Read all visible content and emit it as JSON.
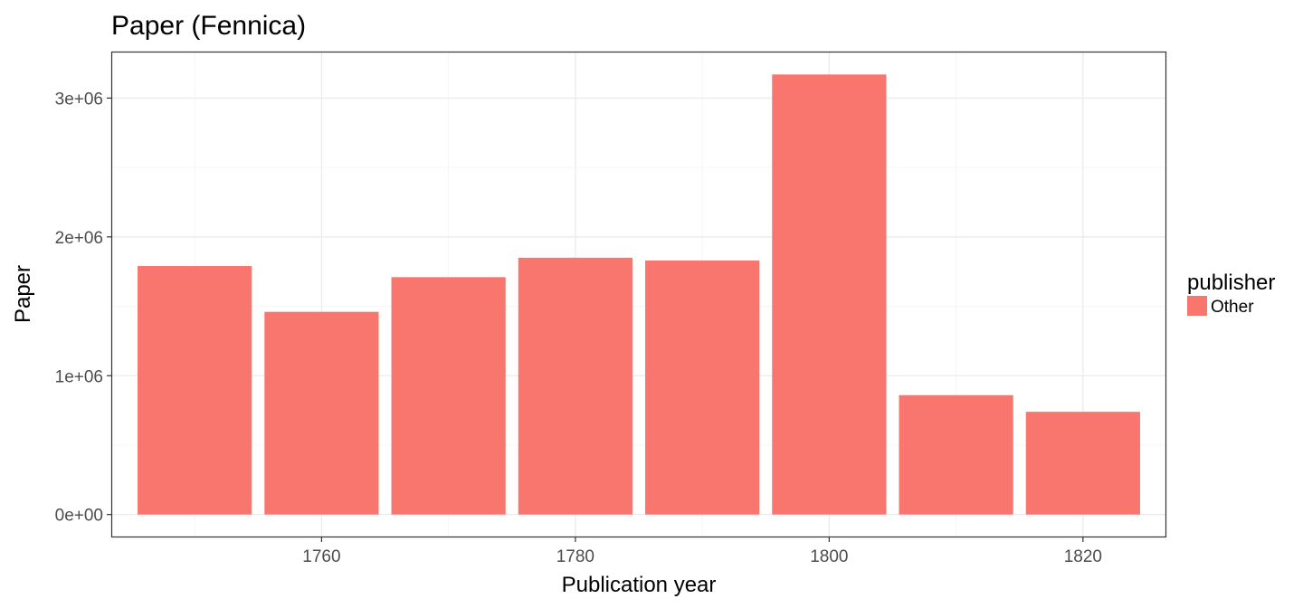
{
  "chart_data": {
    "type": "bar",
    "title": "Paper (Fennica)",
    "xlabel": "Publication year",
    "ylabel": "Paper",
    "x": [
      1750,
      1760,
      1770,
      1780,
      1790,
      1800,
      1810,
      1820
    ],
    "series": [
      {
        "name": "Other",
        "values": [
          1790000,
          1460000,
          1710000,
          1850000,
          1830000,
          3170000,
          860000,
          740000
        ]
      }
    ],
    "x_ticks": [
      1760,
      1780,
      1800,
      1820
    ],
    "x_tick_labels": [
      "1760",
      "1780",
      "1800",
      "1820"
    ],
    "y_ticks": [
      0,
      1000000,
      2000000,
      3000000
    ],
    "y_tick_labels": [
      "0e+00",
      "1e+06",
      "2e+06",
      "3e+06"
    ],
    "xlim": [
      1743.5,
      1826.5
    ],
    "ylim": [
      -158500,
      3328500
    ],
    "grid": true,
    "legend": {
      "title": "publisher",
      "position": "right"
    },
    "colors": {
      "bar": "#F8766D",
      "grid_major": "#ebebeb",
      "grid_minor": "#f5f5f5",
      "panel_border": "#333333",
      "tick_text": "#4d4d4d"
    }
  }
}
